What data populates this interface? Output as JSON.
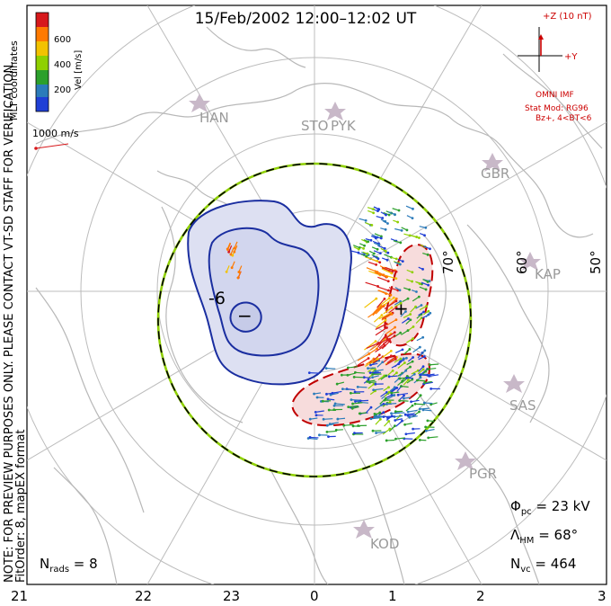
{
  "title": "15/Feb/2002 12:00–12:02 UT",
  "colorbar": {
    "label": "Vel [m/s]",
    "ticks": [
      "600",
      "400",
      "200"
    ],
    "colors": [
      "#d7191c",
      "#ff7a00",
      "#f2c200",
      "#8fd000",
      "#2ca02c",
      "#2b7bba",
      "#1f3fd6"
    ]
  },
  "coord_label": "MLT coordinates",
  "scale_label": "1000 m/s",
  "imf": {
    "z_label": "+Z (10 nT)",
    "y_label": "+Y",
    "source": "OMNI IMF",
    "model": "Stat Mod: RG96",
    "condition": "Bz+, 4<BT<6"
  },
  "side_note_1": "NOTE: FOR PREVIEW PURPOSES ONLY. PLEASE CONTACT VT-SD STAFF FOR VERIFICATION.",
  "side_note_2": "FitOrder: 8, mapEX format",
  "radars": [
    "HAN",
    "STO",
    "PYK",
    "GBR",
    "KAP",
    "SAS",
    "PGR",
    "KOD"
  ],
  "latitude_labels": [
    "70°",
    "60°",
    "50°"
  ],
  "mlt_labels": [
    "21",
    "22",
    "23",
    "0",
    "1",
    "2",
    "3"
  ],
  "stats": {
    "phi_pc_sym": "Φ",
    "phi_pc_sub": "pc",
    "phi_pc_val": " = 23 kV",
    "lambda_sym": "Λ",
    "lambda_sub": "HM",
    "lambda_val": " = 68°",
    "nvc_sym": "N",
    "nvc_sub": "vc",
    "nvc_val": " = 464",
    "nrads_sym": "N",
    "nrads_sub": "rads",
    "nrads_val": " = 8"
  },
  "potential_labels": [
    "-6",
    "−",
    "+"
  ]
}
